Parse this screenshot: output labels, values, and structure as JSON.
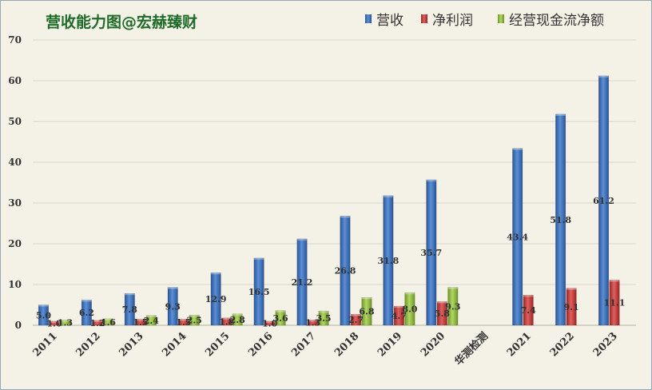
{
  "chart_data": {
    "type": "bar",
    "title": "营收能力图@宏赫臻财",
    "categories": [
      "2011",
      "2012",
      "2013",
      "2014",
      "2015",
      "2016",
      "2017",
      "2018",
      "2019",
      "2020",
      "华测检测",
      "2021",
      "2022",
      "2023"
    ],
    "series": [
      {
        "name": "营收",
        "values": [
          5.0,
          6.2,
          7.8,
          9.3,
          12.9,
          16.5,
          21.2,
          26.8,
          31.8,
          35.7,
          null,
          43.4,
          51.8,
          61.2
        ],
        "labels": [
          "5.0",
          "6.2",
          "7.8",
          "9.3",
          "12.9",
          "16.5",
          "21.2",
          "26.8",
          "31.8",
          "35.7",
          "",
          "43.4",
          "51.8",
          "61.2"
        ],
        "color": "#3d6fb6"
      },
      {
        "name": "净利润",
        "values": [
          1.0,
          1.2,
          1.5,
          1.5,
          1.8,
          1.0,
          1.3,
          2.7,
          4.7,
          5.8,
          null,
          7.4,
          9.1,
          11.1
        ],
        "labels": [
          "1.0",
          "1.2",
          "1.5",
          "1.5",
          "1.8",
          "1.0",
          "1.3",
          "2.7",
          "4.7",
          "5.8",
          "",
          "7.4",
          "9.1",
          "11.1"
        ],
        "color": "#c23b39"
      },
      {
        "name": "经营现金流净额",
        "values": [
          1.3,
          1.6,
          2.4,
          2.5,
          2.8,
          3.6,
          3.5,
          6.8,
          8.0,
          9.3,
          null,
          null,
          null,
          null
        ],
        "labels": [
          "1.3",
          "1.6",
          "2.4",
          "2.5",
          "2.8",
          "3.6",
          "3.5",
          "6.8",
          "8.0",
          "9.3",
          "",
          "",
          "",
          ""
        ],
        "color": "#8db83a"
      }
    ],
    "ylim": [
      0,
      70
    ],
    "yticks": [
      0,
      10,
      20,
      30,
      40,
      50,
      60,
      70
    ],
    "grid": true,
    "legend": "top-right"
  }
}
